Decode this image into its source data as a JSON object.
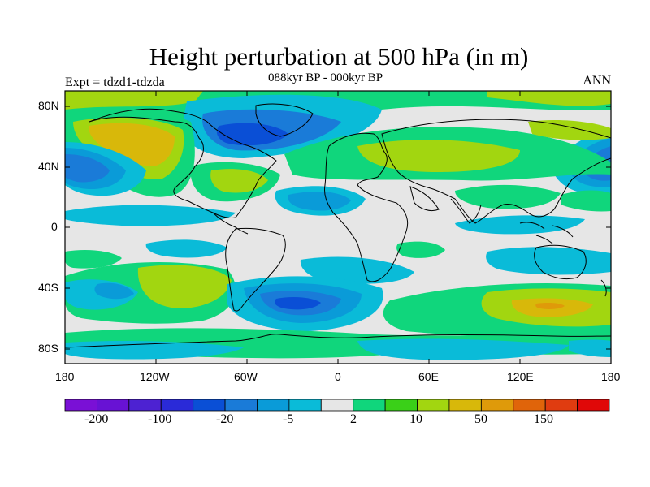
{
  "title": "Height perturbation at 500 hPa (in m)",
  "subtitle": "088kyr BP - 000kyr BP",
  "experiment": "Expt = tdzd1-tdzda",
  "season": "ANN",
  "lat_labels": [
    "80N",
    "40N",
    "0",
    "40S",
    "80S"
  ],
  "lon_labels": [
    "180",
    "120W",
    "60W",
    "0",
    "60E",
    "120E",
    "180"
  ],
  "colorbar": {
    "colors": [
      "#7a10d6",
      "#6812d4",
      "#4d22d2",
      "#2a2ad8",
      "#0a4fd6",
      "#1a7bd8",
      "#0a9bd8",
      "#0abbd8",
      "#e6e6e6",
      "#10d67c",
      "#3ad018",
      "#a2d610",
      "#d8b80a",
      "#df9a0a",
      "#e0640a",
      "#e03c10",
      "#e00808"
    ],
    "labels": [
      "-200",
      "-100",
      "-20",
      "-5",
      "2",
      "10",
      "50",
      "150"
    ]
  },
  "palette": {
    "grey": "#e6e6e6",
    "lightblue": "#0abbd8",
    "blue": "#0a9bd8",
    "midblue": "#1a7bd8",
    "darkblue": "#0a4fd6",
    "green": "#10d67c",
    "lime": "#a2d610",
    "mustard": "#d8b80a",
    "orange": "#df9a0a"
  }
}
